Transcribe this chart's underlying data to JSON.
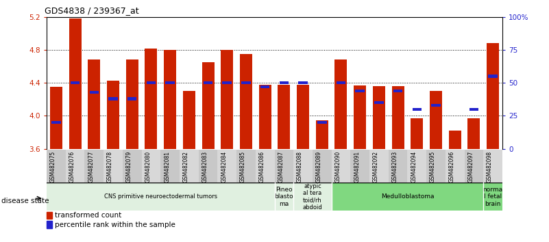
{
  "title": "GDS4838 / 239367_at",
  "samples": [
    "GSM482075",
    "GSM482076",
    "GSM482077",
    "GSM482078",
    "GSM482079",
    "GSM482080",
    "GSM482081",
    "GSM482082",
    "GSM482083",
    "GSM482084",
    "GSM482085",
    "GSM482086",
    "GSM482087",
    "GSM482088",
    "GSM482089",
    "GSM482090",
    "GSM482091",
    "GSM482092",
    "GSM482093",
    "GSM482094",
    "GSM482095",
    "GSM482096",
    "GSM482097",
    "GSM482098"
  ],
  "red_values": [
    4.35,
    5.18,
    4.68,
    4.43,
    4.68,
    4.82,
    4.8,
    4.3,
    4.65,
    4.8,
    4.75,
    4.38,
    4.38,
    4.38,
    3.95,
    4.68,
    4.37,
    4.36,
    4.36,
    3.97,
    4.3,
    3.82,
    3.97,
    4.88
  ],
  "blue_percentiles": [
    20,
    50,
    43,
    38,
    38,
    50,
    50,
    null,
    50,
    50,
    50,
    47,
    50,
    50,
    20,
    50,
    44,
    35,
    44,
    30,
    33,
    null,
    30,
    55
  ],
  "ylim_left": [
    3.6,
    5.2
  ],
  "yticks_left": [
    3.6,
    4.0,
    4.4,
    4.8,
    5.2
  ],
  "yticks_right": [
    0,
    25,
    50,
    75,
    100
  ],
  "ylim_right": [
    0,
    100
  ],
  "red_color": "#CC2200",
  "blue_color": "#2222CC",
  "bar_width": 0.65,
  "groups": [
    {
      "label": "CNS primitive neuroectodermal tumors",
      "start": 0,
      "end": 12,
      "color": "#e0f0e0"
    },
    {
      "label": "Pineo\nblasto\nma",
      "start": 12,
      "end": 13,
      "color": "#e0f0e0"
    },
    {
      "label": "atypic\nal tera\ntoid/rh\nabdoid",
      "start": 13,
      "end": 15,
      "color": "#e0f0e0"
    },
    {
      "label": "Medulloblastoma",
      "start": 15,
      "end": 23,
      "color": "#80d880"
    },
    {
      "label": "norma\nl fetal\nbrain",
      "start": 23,
      "end": 24,
      "color": "#80d880"
    }
  ],
  "disease_state_label": "disease state",
  "legend": [
    {
      "label": "transformed count",
      "color": "#CC2200"
    },
    {
      "label": "percentile rank within the sample",
      "color": "#2222CC"
    }
  ]
}
